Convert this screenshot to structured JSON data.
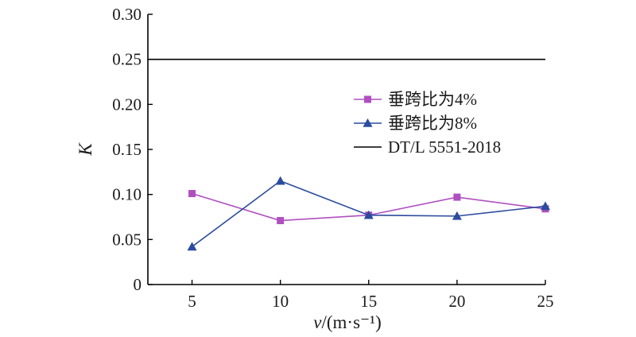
{
  "chart_data": {
    "type": "line",
    "x": [
      5,
      10,
      15,
      20,
      25
    ],
    "xlabel": "v/(m·s⁻¹)",
    "ylabel": "K",
    "xlim": [
      2.5,
      25
    ],
    "ylim": [
      0,
      0.3
    ],
    "xticks": [
      "5",
      "10",
      "15",
      "20",
      "25"
    ],
    "yticks": [
      "0",
      "0.05",
      "0.10",
      "0.15",
      "0.20",
      "0.25",
      "0.30"
    ],
    "grid": false,
    "legend_position": "right",
    "series": [
      {
        "name": "垂跨比为4%",
        "values": [
          0.101,
          0.071,
          0.077,
          0.097,
          0.084
        ],
        "color": "#b04fc0",
        "marker": "square"
      },
      {
        "name": "垂跨比为8%",
        "values": [
          0.042,
          0.115,
          0.077,
          0.076,
          0.087
        ],
        "color": "#2b4c9e",
        "marker": "triangle"
      }
    ],
    "reference_line": {
      "name": "DT/L 5551-2018",
      "value": 0.25,
      "color": "#000000"
    }
  }
}
